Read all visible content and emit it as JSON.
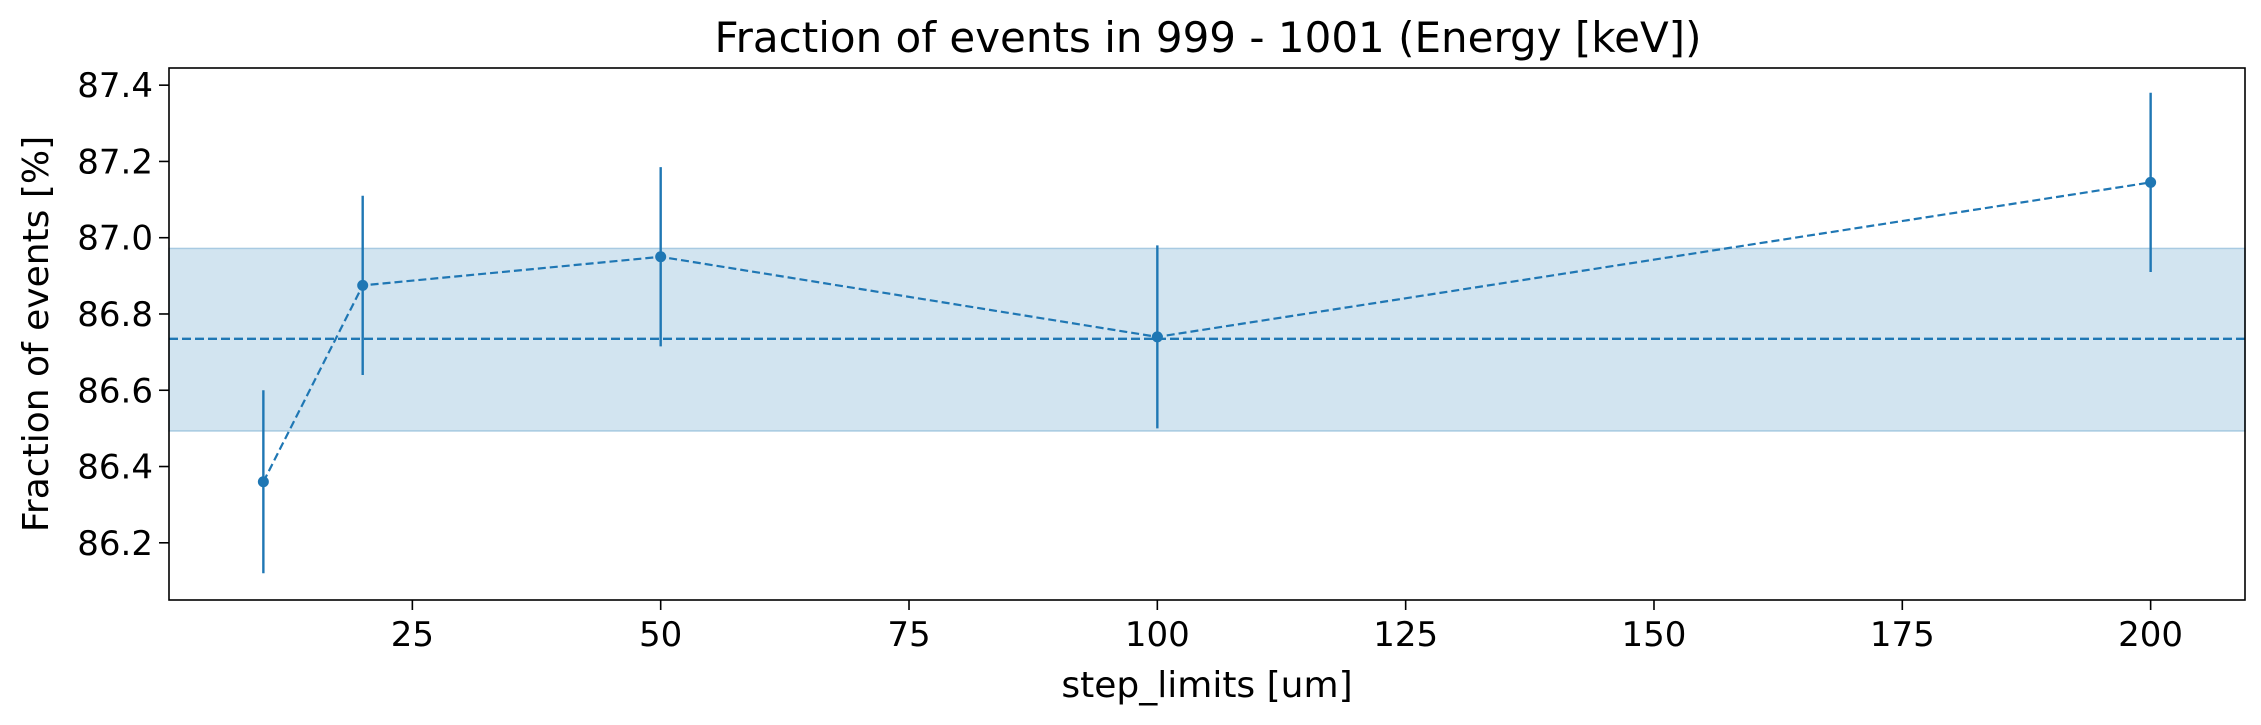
{
  "chart_data": {
    "type": "line",
    "title": "Fraction of events in 999 - 1001 (Energy [keV])",
    "xlabel": "step_limits [um]",
    "ylabel": "Fraction of events [%]",
    "xlim": [
      0.5,
      209.5
    ],
    "ylim": [
      86.05,
      87.445
    ],
    "xticks": [
      25,
      50,
      75,
      100,
      125,
      150,
      175,
      200
    ],
    "yticks": [
      86.2,
      86.4,
      86.6,
      86.8,
      87.0,
      87.2,
      87.4
    ],
    "ytick_labels": [
      "86.2",
      "86.4",
      "86.6",
      "86.8",
      "87.0",
      "87.2",
      "87.4"
    ],
    "grid": false,
    "series": [
      {
        "x": [
          10,
          20,
          50,
          100,
          200
        ],
        "y": [
          86.36,
          86.875,
          86.95,
          86.74,
          87.145
        ],
        "yerr": [
          0.24,
          0.235,
          0.235,
          0.24,
          0.235
        ],
        "color": "#1f77b4",
        "linestyle": "dashed",
        "marker": "circle"
      }
    ],
    "mean_line": {
      "y": 86.735,
      "color": "#1f77b4",
      "linestyle": "dashed"
    },
    "band": {
      "y_low": 86.493,
      "y_high": 86.972,
      "color": "#1f77b4",
      "alpha": 0.2
    }
  }
}
